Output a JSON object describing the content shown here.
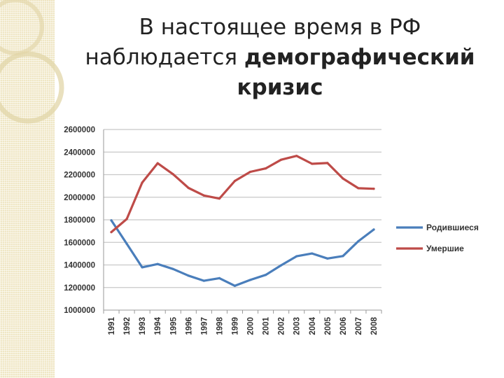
{
  "title": {
    "line1": "В настоящее время в РФ",
    "line2_prefix": "наблюдается ",
    "line2_bold": "демографический",
    "line3_bold": "кризис"
  },
  "chart_data": {
    "type": "line",
    "x": [
      "1991",
      "1992",
      "1993",
      "1994",
      "1995",
      "1996",
      "1997",
      "1998",
      "1999",
      "2000",
      "2001",
      "2002",
      "2003",
      "2004",
      "2005",
      "2006",
      "2007",
      "2008"
    ],
    "ylim": [
      1000000,
      2600000
    ],
    "yticks": [
      "2600000",
      "2400000",
      "2200000",
      "2000000",
      "1800000",
      "1600000",
      "1400000",
      "1200000",
      "1000000"
    ],
    "grid": true,
    "legend": "right",
    "series": [
      {
        "name": "Родившиеся",
        "color": "#4a7ebb",
        "values": [
          1795000,
          1587000,
          1379000,
          1408000,
          1364000,
          1305000,
          1260000,
          1283000,
          1215000,
          1267000,
          1312000,
          1397000,
          1477000,
          1502000,
          1457000,
          1479000,
          1610000,
          1714000
        ]
      },
      {
        "name": "Умершие",
        "color": "#be4b48",
        "values": [
          1691000,
          1807000,
          2129000,
          2301000,
          2204000,
          2082000,
          2015000,
          1988000,
          2144000,
          2225000,
          2255000,
          2332000,
          2366000,
          2296000,
          2303000,
          2166000,
          2080000,
          2075000
        ]
      }
    ]
  }
}
